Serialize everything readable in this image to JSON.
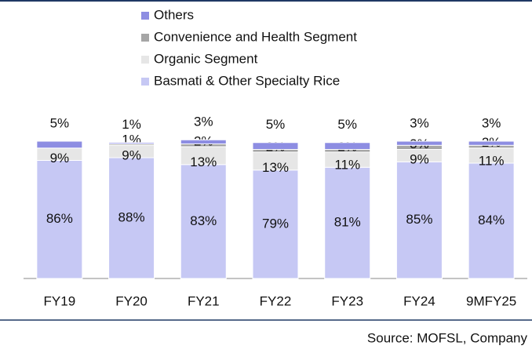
{
  "chart_data": {
    "type": "stacked_bar",
    "categories": [
      "FY19",
      "FY20",
      "FY21",
      "FY22",
      "FY23",
      "FY24",
      "9MFY25"
    ],
    "series": [
      {
        "name": "Basmati & Other Specialty Rice",
        "color": "#c6c8f4",
        "values": [
          86,
          88,
          83,
          79,
          81,
          85,
          84
        ]
      },
      {
        "name": "Organic Segment",
        "color": "#e6e6e6",
        "values": [
          9,
          9,
          13,
          13,
          11,
          9,
          11
        ]
      },
      {
        "name": "Convenience and Health Segment",
        "color": "#a6a6a6",
        "values": [
          null,
          1,
          2,
          2,
          2,
          3,
          2
        ]
      },
      {
        "name": "Others",
        "color": "#8d8de2",
        "values": [
          5,
          1,
          3,
          5,
          5,
          3,
          3
        ]
      }
    ],
    "value_labels": [
      [
        "86%",
        "88%",
        "83%",
        "79%",
        "81%",
        "85%",
        "84%"
      ],
      [
        "9%",
        "9%",
        "13%",
        "13%",
        "11%",
        "9%",
        "11%"
      ],
      [
        null,
        "1%",
        "2%",
        "2%",
        "2%",
        "3%",
        "2%"
      ],
      [
        "5%",
        "1%",
        "3%",
        "5%",
        "5%",
        "3%",
        "3%"
      ]
    ],
    "ylim": [
      0,
      100
    ],
    "source": "Source: MOFSL, Company"
  }
}
